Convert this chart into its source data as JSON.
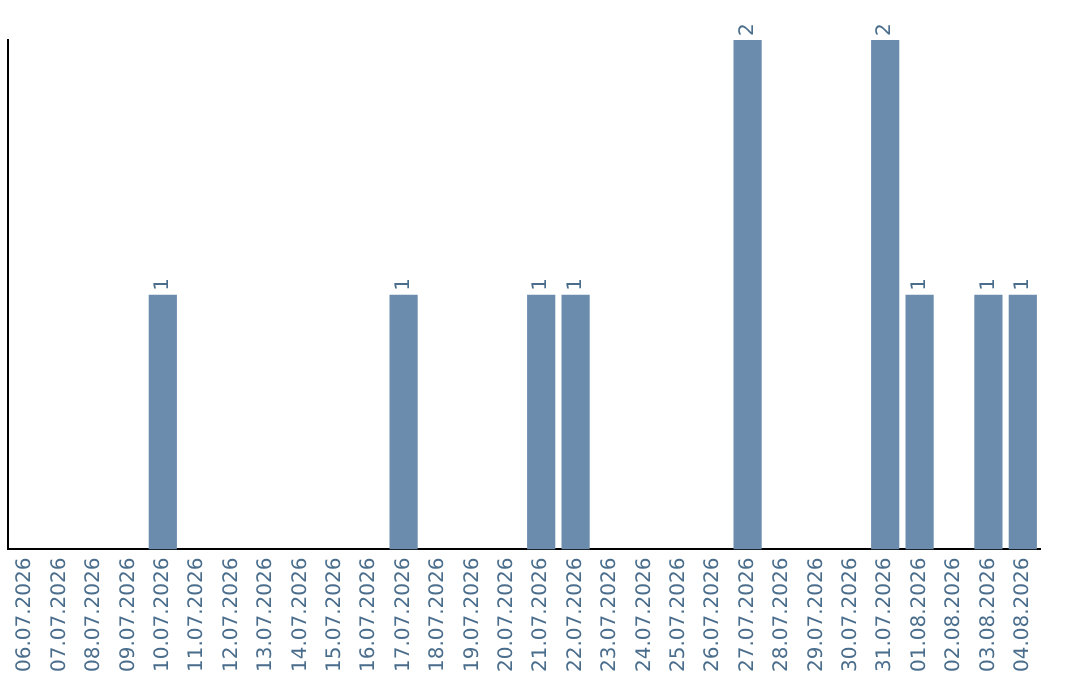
{
  "chart_data": {
    "type": "bar",
    "categories": [
      "06.07.2026",
      "07.07.2026",
      "08.07.2026",
      "09.07.2026",
      "10.07.2026",
      "11.07.2026",
      "12.07.2026",
      "13.07.2026",
      "14.07.2026",
      "15.07.2026",
      "16.07.2026",
      "17.07.2026",
      "18.07.2026",
      "19.07.2026",
      "20.07.2026",
      "21.07.2026",
      "22.07.2026",
      "23.07.2026",
      "24.07.2026",
      "25.07.2026",
      "26.07.2026",
      "27.07.2026",
      "28.07.2026",
      "29.07.2026",
      "30.07.2026",
      "31.07.2026",
      "01.08.2026",
      "02.08.2026",
      "03.08.2026",
      "04.08.2026"
    ],
    "values": [
      0,
      0,
      0,
      0,
      1,
      0,
      0,
      0,
      0,
      0,
      0,
      1,
      0,
      0,
      0,
      1,
      1,
      0,
      0,
      0,
      0,
      2,
      0,
      0,
      0,
      2,
      1,
      0,
      1,
      1
    ],
    "value_labels": [
      null,
      null,
      null,
      null,
      "1",
      null,
      null,
      null,
      null,
      null,
      null,
      "1",
      null,
      null,
      null,
      "1",
      "1",
      null,
      null,
      null,
      null,
      "2",
      null,
      null,
      null,
      "2",
      "1",
      null,
      "1",
      "1"
    ],
    "color": "#6b8cac",
    "ylim": [
      0,
      2
    ],
    "tick_labels": "x",
    "grid": false,
    "legend": false
  }
}
